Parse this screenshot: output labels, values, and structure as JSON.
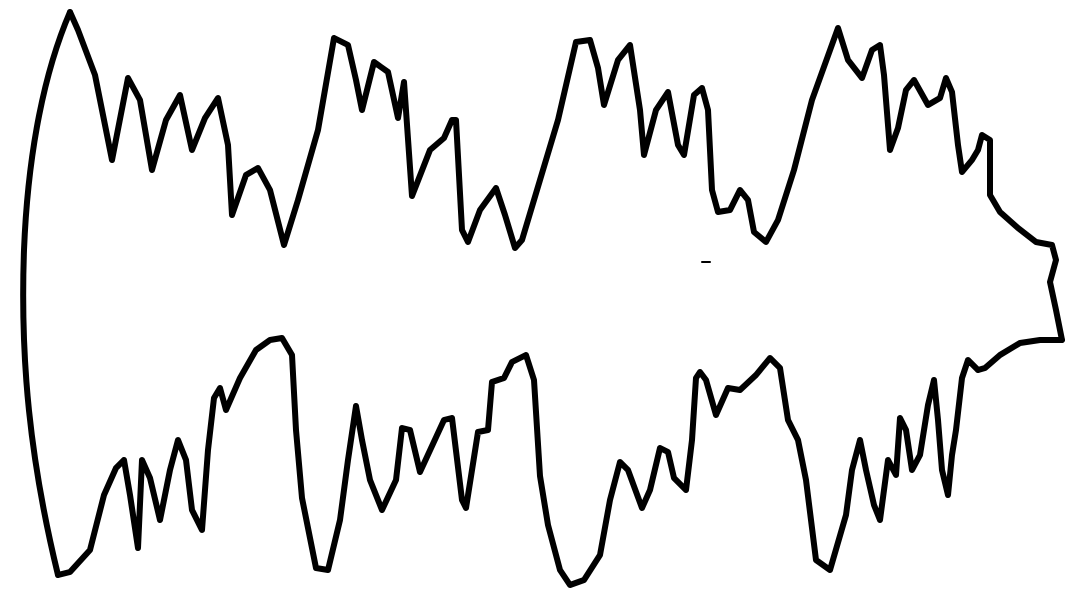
{
  "drawing": {
    "subject": "hand-drawn-jagged-outline",
    "stroke_color": "#000000",
    "background_color": "#ffffff"
  }
}
